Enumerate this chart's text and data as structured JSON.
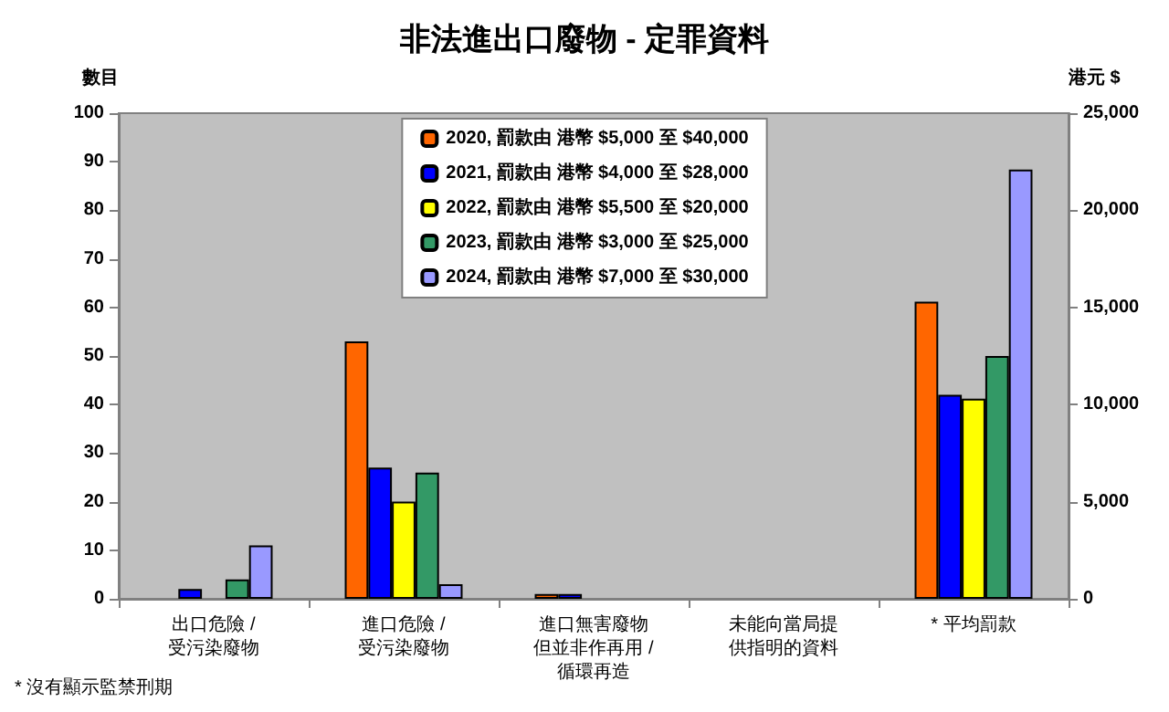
{
  "chart_data": {
    "type": "bar",
    "title": "非法進出口廢物 - 定罪資料",
    "categories": [
      "出口危險 /\n受污染廢物",
      "進口危險 /\n受污染廢物",
      "進口無害廢物但並非作再用 /\n循環再造",
      "未能向當局提供指明的資料",
      "* 平均罰款"
    ],
    "ylabel": "數目",
    "y2label": "港元 $",
    "ylim": [
      0,
      100
    ],
    "yticks": [
      0,
      10,
      20,
      30,
      40,
      50,
      60,
      70,
      80,
      90,
      100
    ],
    "y2lim": [
      0,
      25000
    ],
    "y2ticks": [
      {
        "value": 0,
        "label": "0"
      },
      {
        "value": 5000,
        "label": "5,000"
      },
      {
        "value": 10000,
        "label": "10,000"
      },
      {
        "value": 15000,
        "label": "15,000"
      },
      {
        "value": 20000,
        "label": "20,000"
      },
      {
        "value": 25000,
        "label": "25,000"
      }
    ],
    "legend": "top",
    "annotations": [
      "* 沒有顯示監禁刑期"
    ],
    "series": [
      {
        "name": "2020, 罰款由 港幣 $5,000 至 $40,000",
        "color": "#ff6600",
        "values": [
          0,
          53,
          1,
          0,
          null
        ]
      },
      {
        "name": "2021, 罰款由 港幣 $4,000 至 $28,000",
        "color": "#0000ff",
        "values": [
          2,
          27,
          1,
          0,
          null
        ]
      },
      {
        "name": "2022, 罰款由 港幣 $5,500 至 $20,000",
        "color": "#ffff00",
        "values": [
          0,
          20,
          0,
          0,
          null
        ]
      },
      {
        "name": "2023, 罰款由 港幣 $3,000 至 $25,000",
        "color": "#339966",
        "values": [
          4,
          26,
          0,
          0,
          null
        ]
      },
      {
        "name": "2024, 罰款由 港幣 $7,000 至 $30,000",
        "color": "#9999ff",
        "values": [
          11,
          3,
          0,
          0,
          null
        ]
      },
      {
        "axis": "y2",
        "color": "#ff6600",
        "values": [
          null,
          null,
          null,
          null,
          15300
        ]
      },
      {
        "axis": "y2",
        "color": "#0000ff",
        "values": [
          null,
          null,
          null,
          null,
          10500
        ]
      },
      {
        "axis": "y2",
        "color": "#ffff00",
        "values": [
          null,
          null,
          null,
          null,
          10300
        ]
      },
      {
        "axis": "y2",
        "color": "#339966",
        "values": [
          null,
          null,
          null,
          null,
          12500
        ]
      },
      {
        "axis": "y2",
        "color": "#9999ff",
        "values": [
          null,
          null,
          null,
          null,
          22100
        ]
      }
    ]
  }
}
